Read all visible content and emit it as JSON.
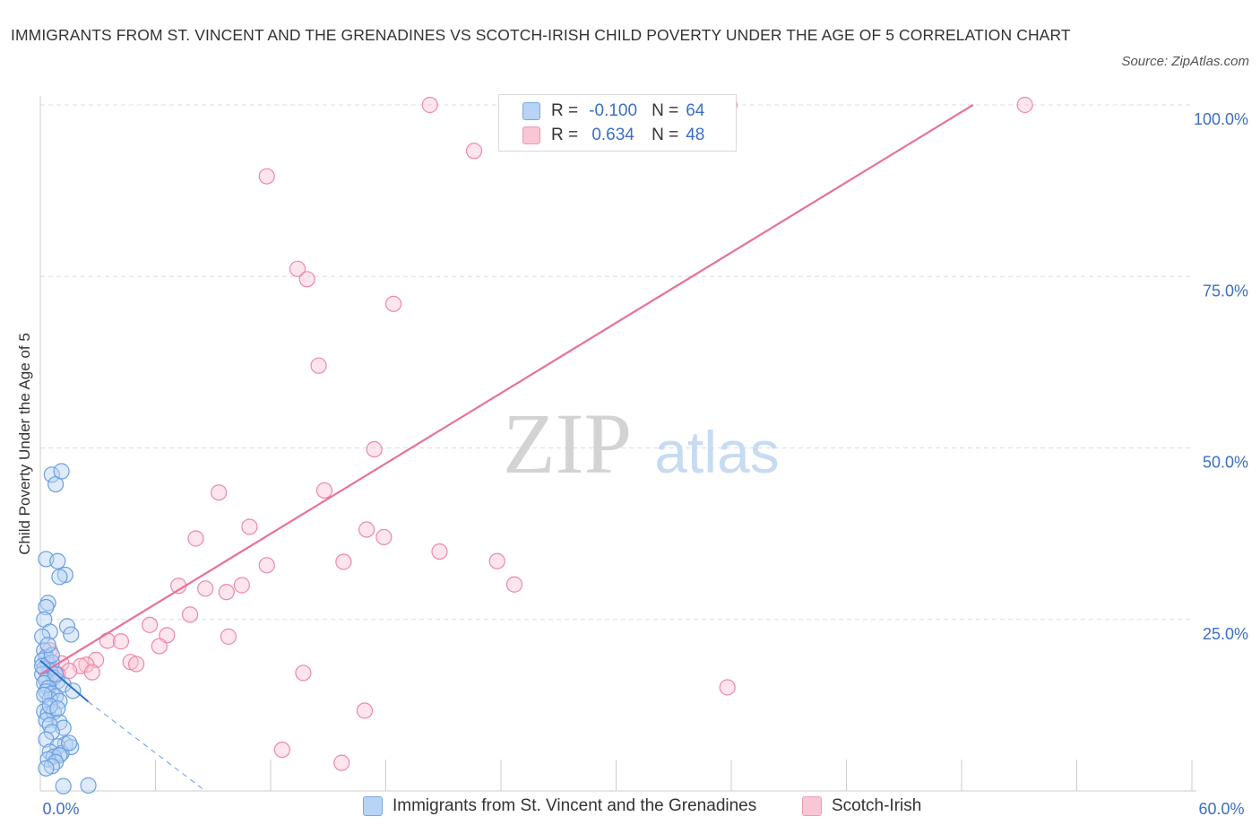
{
  "header": {
    "title": "IMMIGRANTS FROM ST. VINCENT AND THE GRENADINES VS SCOTCH-IRISH CHILD POVERTY UNDER THE AGE OF 5 CORRELATION CHART",
    "source": "Source: ZipAtlas.com"
  },
  "watermark": {
    "zip": "ZIP",
    "atlas": "atlas"
  },
  "legend": {
    "r_label": "R =",
    "n_label": "N =",
    "rows": [
      {
        "r": "-0.100",
        "n": "64"
      },
      {
        "r": "0.634",
        "n": "48"
      }
    ]
  },
  "axes": {
    "y_title": "Child Poverty Under the Age of 5",
    "x_min_label": "0.0%",
    "x_max_label": "60.0%",
    "y_tick_labels": [
      "100.0%",
      "75.0%",
      "50.0%",
      "25.0%"
    ]
  },
  "colors": {
    "blue": "#6a9fe0",
    "blue_fill": "#b7d3f5",
    "pink": "#ee88a8",
    "pink_fill": "#f9c6d5",
    "pink_line": "#e8719a",
    "blue_line": "#2f6fd0",
    "tick_label": "#3b6fc7",
    "grid": "#dddddd"
  },
  "chart_data": {
    "type": "scatter",
    "x_range": [
      0,
      60
    ],
    "y_range": [
      0,
      100
    ],
    "grid": true,
    "legend_position": "top-center",
    "series": [
      {
        "name": "Immigrants from St. Vincent and the Grenadines",
        "color": "#6a9fe0",
        "points": [
          [
            0.6,
            46.1
          ],
          [
            0.8,
            44.7
          ],
          [
            1.1,
            46.6
          ],
          [
            0.3,
            33.8
          ],
          [
            0.9,
            33.5
          ],
          [
            1.3,
            31.5
          ],
          [
            1.0,
            31.2
          ],
          [
            0.4,
            27.4
          ],
          [
            0.3,
            26.8
          ],
          [
            0.2,
            25.0
          ],
          [
            1.4,
            24.0
          ],
          [
            1.6,
            22.8
          ],
          [
            0.5,
            23.2
          ],
          [
            0.1,
            22.5
          ],
          [
            0.2,
            20.5
          ],
          [
            0.3,
            19.5
          ],
          [
            0.1,
            19.0
          ],
          [
            0.4,
            18.5
          ],
          [
            0.6,
            18.7
          ],
          [
            0.2,
            17.8
          ],
          [
            0.5,
            17.5
          ],
          [
            0.1,
            17.0
          ],
          [
            0.7,
            16.5
          ],
          [
            0.3,
            16.1
          ],
          [
            0.2,
            15.7
          ],
          [
            0.9,
            16.0
          ],
          [
            0.4,
            15.0
          ],
          [
            1.2,
            15.5
          ],
          [
            0.3,
            14.5
          ],
          [
            0.6,
            14.2
          ],
          [
            1.7,
            14.6
          ],
          [
            0.8,
            13.8
          ],
          [
            0.5,
            13.4
          ],
          [
            1.0,
            13.1
          ],
          [
            0.2,
            11.6
          ],
          [
            0.4,
            11.2
          ],
          [
            0.7,
            11.5
          ],
          [
            0.3,
            10.3
          ],
          [
            1.0,
            10.0
          ],
          [
            0.5,
            9.6
          ],
          [
            1.2,
            9.2
          ],
          [
            0.6,
            8.6
          ],
          [
            0.3,
            7.5
          ],
          [
            1.3,
            6.8
          ],
          [
            0.9,
            6.5
          ],
          [
            1.6,
            6.4
          ],
          [
            0.5,
            5.7
          ],
          [
            1.1,
            5.5
          ],
          [
            0.7,
            5.0
          ],
          [
            1.0,
            5.2
          ],
          [
            0.4,
            4.6
          ],
          [
            0.8,
            4.2
          ],
          [
            0.6,
            3.6
          ],
          [
            0.3,
            3.3
          ],
          [
            1.2,
            0.7
          ],
          [
            2.5,
            0.8
          ],
          [
            0.2,
            14.0
          ],
          [
            0.5,
            12.4
          ],
          [
            0.9,
            12.0
          ],
          [
            1.5,
            7.0
          ],
          [
            0.6,
            19.8
          ],
          [
            0.4,
            21.3
          ],
          [
            0.1,
            18.2
          ],
          [
            0.8,
            17.0
          ]
        ]
      },
      {
        "name": "Scotch-Irish",
        "color": "#ee88a8",
        "points": [
          [
            20.3,
            100.0
          ],
          [
            28.3,
            100.0
          ],
          [
            35.9,
            100.0
          ],
          [
            51.3,
            100.0
          ],
          [
            22.6,
            93.3
          ],
          [
            11.8,
            89.6
          ],
          [
            13.4,
            76.1
          ],
          [
            13.9,
            74.6
          ],
          [
            18.4,
            71.0
          ],
          [
            14.5,
            62.0
          ],
          [
            17.4,
            49.8
          ],
          [
            9.3,
            43.5
          ],
          [
            14.8,
            43.8
          ],
          [
            10.9,
            38.5
          ],
          [
            17.0,
            38.1
          ],
          [
            8.1,
            36.8
          ],
          [
            17.9,
            37.0
          ],
          [
            20.8,
            34.9
          ],
          [
            15.8,
            33.4
          ],
          [
            23.8,
            33.5
          ],
          [
            11.8,
            32.9
          ],
          [
            24.7,
            30.1
          ],
          [
            7.2,
            29.9
          ],
          [
            8.6,
            29.5
          ],
          [
            10.5,
            30.0
          ],
          [
            9.7,
            29.0
          ],
          [
            7.8,
            25.7
          ],
          [
            5.7,
            24.2
          ],
          [
            6.6,
            22.7
          ],
          [
            9.8,
            22.5
          ],
          [
            3.5,
            21.9
          ],
          [
            4.2,
            21.8
          ],
          [
            6.2,
            21.1
          ],
          [
            0.5,
            20.5
          ],
          [
            2.9,
            19.1
          ],
          [
            4.7,
            18.8
          ],
          [
            1.1,
            18.6
          ],
          [
            5.0,
            18.5
          ],
          [
            2.4,
            18.4
          ],
          [
            2.1,
            18.2
          ],
          [
            1.5,
            17.5
          ],
          [
            2.7,
            17.3
          ],
          [
            0.9,
            17.0
          ],
          [
            13.7,
            17.2
          ],
          [
            35.8,
            15.1
          ],
          [
            16.9,
            11.7
          ],
          [
            12.6,
            6.0
          ],
          [
            15.7,
            4.1
          ]
        ]
      }
    ],
    "trend_lines": [
      {
        "series": "Scotch-Irish",
        "x": [
          0.0,
          48.6
        ],
        "y": [
          17.0,
          100.0
        ],
        "style": "solid"
      },
      {
        "series": "Immigrants from St. Vincent and the Grenadines",
        "x": [
          0.0,
          2.5
        ],
        "y": [
          19.0,
          13.0
        ],
        "style": "solid"
      },
      {
        "series": "Immigrants from St. Vincent and the Grenadines",
        "x": [
          2.5,
          8.6
        ],
        "y": [
          13.0,
          0.0
        ],
        "style": "dashed"
      }
    ]
  }
}
